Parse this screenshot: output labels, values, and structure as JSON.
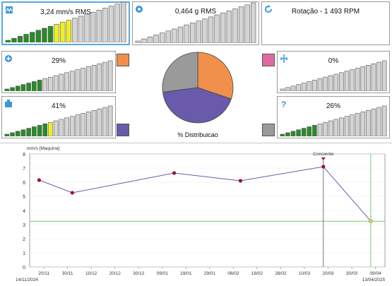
{
  "panels": {
    "vel": {
      "title": "3,24 mm/s RMS",
      "icon": "vibration-icon",
      "level": 11,
      "yellow_from": 8
    },
    "acc": {
      "title": "0,464 g RMS",
      "icon": "gear-icon",
      "level": 0
    },
    "rot": {
      "title": "Rotação - 1 493 RPM",
      "icon": "rotation-icon"
    },
    "left1": {
      "title": "29%",
      "icon": "bearing-icon",
      "level": 7,
      "color": "#f0904a"
    },
    "left2": {
      "title": "41%",
      "icon": "pump-icon",
      "level": 9,
      "yellow_from": 8,
      "color": "#6a5aaa"
    },
    "right1": {
      "title": "0%",
      "icon": "electrical-icon",
      "level": 0,
      "color": "#e06aa0"
    },
    "right2": {
      "title": "26%",
      "icon": "question-icon",
      "level": 7,
      "color": "#9a9a9a"
    }
  },
  "pie": {
    "label": "% Distribuicao",
    "slices": [
      {
        "value": 29,
        "color": "#f0904a"
      },
      {
        "value": 41,
        "color": "#6a5aaa"
      },
      {
        "value": 0,
        "color": "#e06aa0"
      },
      {
        "value": 26,
        "color": "#9a9a9a"
      }
    ]
  },
  "chart_data": {
    "type": "line",
    "ylabel": "mm/s [Maquina]",
    "ylim": [
      0,
      8
    ],
    "yticks": [
      "0",
      "1",
      "2",
      "3",
      "4",
      "5",
      "6",
      "7",
      "8"
    ],
    "xtick_labels": [
      "20/11",
      "30/11",
      "10/12",
      "20/12",
      "30/12",
      "09/01",
      "19/01",
      "29/01",
      "08/02",
      "18/02",
      "28/02",
      "10/03",
      "20/03",
      "30/03",
      "09/04"
    ],
    "date_start": "14/11/2024",
    "date_end": "13/04/2025",
    "series": [
      {
        "values": [
          {
            "x": "18/11/2024",
            "y": 6.15
          },
          {
            "x": "02/12/2024",
            "y": 5.25
          },
          {
            "x": "14/01/2025",
            "y": 6.65
          },
          {
            "x": "11/02/2025",
            "y": 6.1
          },
          {
            "x": "18/03/2025",
            "y": 7.1
          },
          {
            "x": "07/04/2025",
            "y": 3.24
          }
        ]
      }
    ],
    "annotation": {
      "label": "Conciente",
      "x": "18/03/2025"
    },
    "threshold_y": 3.24,
    "cursor_x": "07/04/2025",
    "colors": {
      "line": "#6a5aaa",
      "point": "#a01030",
      "threshold": "#6ad06a",
      "last_point": "#e0d060"
    }
  }
}
